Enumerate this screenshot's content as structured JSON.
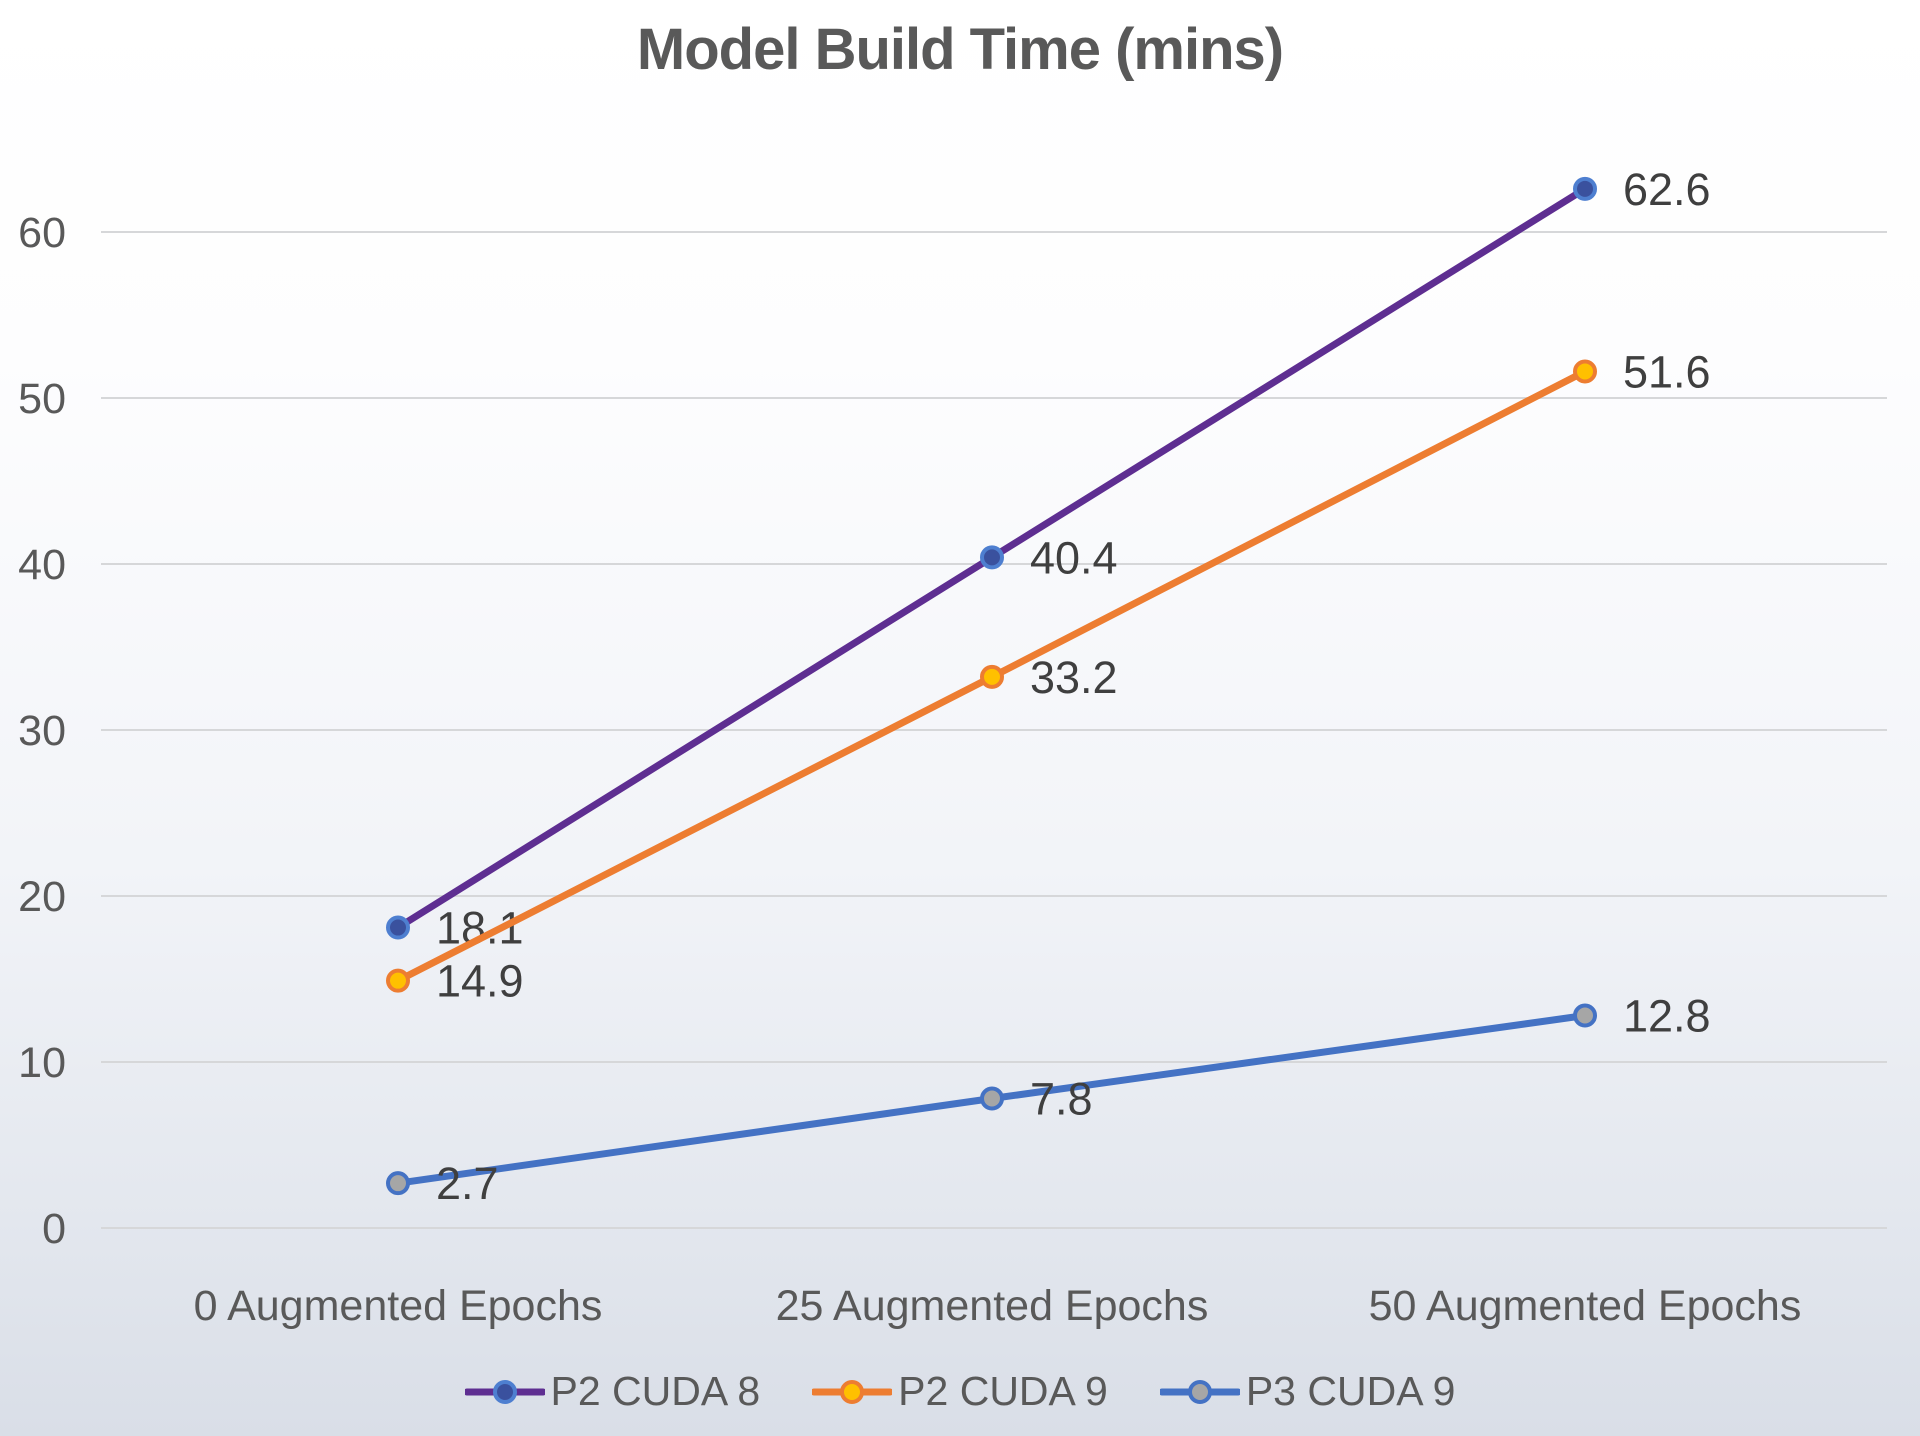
{
  "title": "Model Build Time (mins)",
  "chart_data": {
    "type": "line",
    "title": "Model Build Time (mins)",
    "categories": [
      "0 Augmented Epochs",
      "25 Augmented Epochs",
      "50 Augmented Epochs"
    ],
    "series": [
      {
        "name": "P2 CUDA 8",
        "values": [
          18.1,
          40.4,
          62.6
        ],
        "line_color": "#5E2E91",
        "marker_fill": "#3A519E",
        "marker_stroke": "#4E7FD0"
      },
      {
        "name": "P2 CUDA 9",
        "values": [
          14.9,
          33.2,
          51.6
        ],
        "line_color": "#ED7D31",
        "marker_fill": "#FFC000",
        "marker_stroke": "#ED7D31"
      },
      {
        "name": "P3 CUDA 9",
        "values": [
          2.7,
          7.8,
          12.8
        ],
        "line_color": "#4472C4",
        "marker_fill": "#A6A6A6",
        "marker_stroke": "#4472C4"
      }
    ],
    "y_ticks": [
      0,
      10,
      20,
      30,
      40,
      50,
      60
    ],
    "ylim": [
      0,
      65
    ],
    "grid": true,
    "legend_position": "bottom",
    "data_labels": true,
    "grid_color": "#d6d7d9",
    "axis_label_color": "#595959",
    "data_label_color": "#3f3f3f",
    "title_color": "#595959"
  }
}
